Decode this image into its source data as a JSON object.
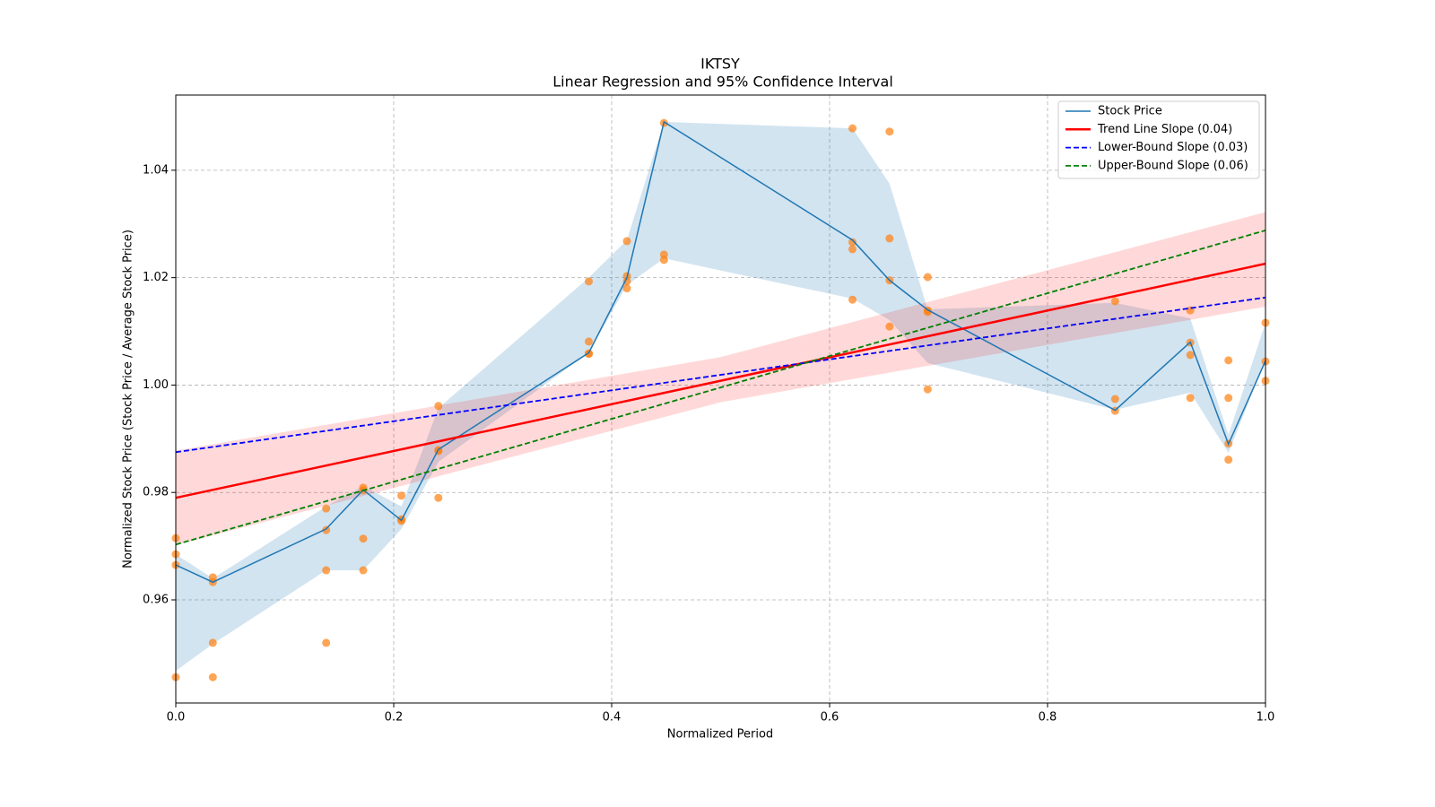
{
  "chart_data": {
    "type": "line",
    "title": "IKTSY",
    "subtitle": "Linear Regression and 95% Confidence Interval",
    "x_label": "Normalized Period",
    "y_label": "Normalized Stock Price (Stock Price / Average Stock Price)",
    "xlim": [
      0,
      1
    ],
    "ylim": [
      0.9408,
      1.054
    ],
    "xticks": [
      {
        "value": 0,
        "label": "0.0"
      },
      0.2,
      0.4,
      0.6,
      0.8,
      {
        "value": 1,
        "label": "1.0"
      }
    ],
    "yticks": [
      0.96,
      0.98,
      {
        "value": 1,
        "label": "1.00"
      },
      1.02,
      1.04
    ],
    "grid": true,
    "legend": "upper right",
    "bands": [
      {
        "color": "#1f77b4",
        "x": [
          0,
          0.034,
          0.138,
          0.172,
          0.207,
          0.241,
          0.379,
          0.414,
          0.448,
          0.621,
          0.655,
          0.69,
          0.862,
          0.931,
          0.966,
          1
        ],
        "lower": [
          0.9468,
          0.9518,
          0.9655,
          0.9655,
          0.9732,
          0.9857,
          1.006,
          1.0186,
          1.0236,
          1.0161,
          1.0121,
          1.0041,
          0.9954,
          0.9986,
          0.9874,
          1.0046
        ],
        "upper": [
          0.9685,
          0.964,
          0.9774,
          0.9812,
          0.9774,
          0.9957,
          1.02,
          1.027,
          1.049,
          1.0478,
          1.0375,
          1.0141,
          1.0153,
          1.0124,
          0.9907,
          1.0116
        ]
      },
      {
        "color": "#ff0000",
        "x": [
          0,
          0.5,
          1
        ],
        "lower": [
          0.9702,
          0.9968,
          1.0146
        ],
        "upper": [
          0.9878,
          1.0052,
          1.0322
        ]
      }
    ],
    "points": {
      "color": "#ff7f0e",
      "x": [
        0,
        0,
        0,
        0,
        0.034,
        0.034,
        0.034,
        0.034,
        0.138,
        0.138,
        0.138,
        0.138,
        0.172,
        0.172,
        0.172,
        0.172,
        0.207,
        0.207,
        0.207,
        0.241,
        0.241,
        0.241,
        0.241,
        0.379,
        0.379,
        0.379,
        0.379,
        0.414,
        0.414,
        0.414,
        0.414,
        0.448,
        0.448,
        0.448,
        0.621,
        0.621,
        0.621,
        0.621,
        0.655,
        0.655,
        0.655,
        0.655,
        0.69,
        0.69,
        0.69,
        0.69,
        0.862,
        0.862,
        0.862,
        0.931,
        0.931,
        0.931,
        0.931,
        0.966,
        0.966,
        0.966,
        0.966,
        1,
        1,
        1
      ],
      "values": [
        0.9715,
        0.9685,
        0.9665,
        0.9456,
        0.9642,
        0.9633,
        0.952,
        0.9456,
        0.977,
        0.973,
        0.9655,
        0.952,
        0.9809,
        0.9804,
        0.9714,
        0.9655,
        0.9794,
        0.975,
        0.9747,
        0.9961,
        0.9879,
        0.9877,
        0.979,
        1.0193,
        1.0081,
        1.0059,
        1.0058,
        1.0268,
        1.0203,
        1.0193,
        1.018,
        1.0488,
        1.0243,
        1.0233,
        1.0478,
        1.0266,
        1.0253,
        1.0159,
        1.0472,
        1.0273,
        1.0195,
        1.0109,
        1.0201,
        1.0139,
        1.0136,
        0.9992,
        1.0156,
        0.9974,
        0.9952,
        1.0139,
        1.0079,
        1.0056,
        0.9976,
        1.0046,
        0.9976,
        0.9891,
        0.9861,
        1.0116,
        1.0044,
        1.0008
      ]
    },
    "series": [
      {
        "name": "Stock Price",
        "color": "#1f77b4",
        "linestyle": "solid",
        "width": 1.5,
        "x": [
          0,
          0.034,
          0.138,
          0.172,
          0.207,
          0.241,
          0.379,
          0.414,
          0.448,
          0.621,
          0.655,
          0.69,
          0.862,
          0.931,
          0.966,
          1
        ],
        "values": [
          0.9665,
          0.9633,
          0.9732,
          0.9805,
          0.9748,
          0.988,
          1.006,
          1.02,
          1.049,
          1.027,
          1.0195,
          1.014,
          0.9953,
          1.008,
          0.989,
          1.0045
        ]
      },
      {
        "name": "Trend Line Slope (0.04)",
        "color": "#ff0000",
        "linestyle": "solid",
        "width": 2.5,
        "x": [
          0,
          1
        ],
        "values": [
          0.979,
          1.0226
        ]
      },
      {
        "name": "Lower-Bound Slope (0.03)",
        "color": "#0000ff",
        "linestyle": "dashed",
        "width": 1.8,
        "x": [
          0,
          1
        ],
        "values": [
          0.9875,
          1.0163
        ]
      },
      {
        "name": "Upper-Bound Slope (0.06)",
        "color": "#008000",
        "linestyle": "dashed",
        "width": 1.8,
        "x": [
          0,
          1
        ],
        "values": [
          0.9703,
          1.0288
        ]
      }
    ]
  }
}
